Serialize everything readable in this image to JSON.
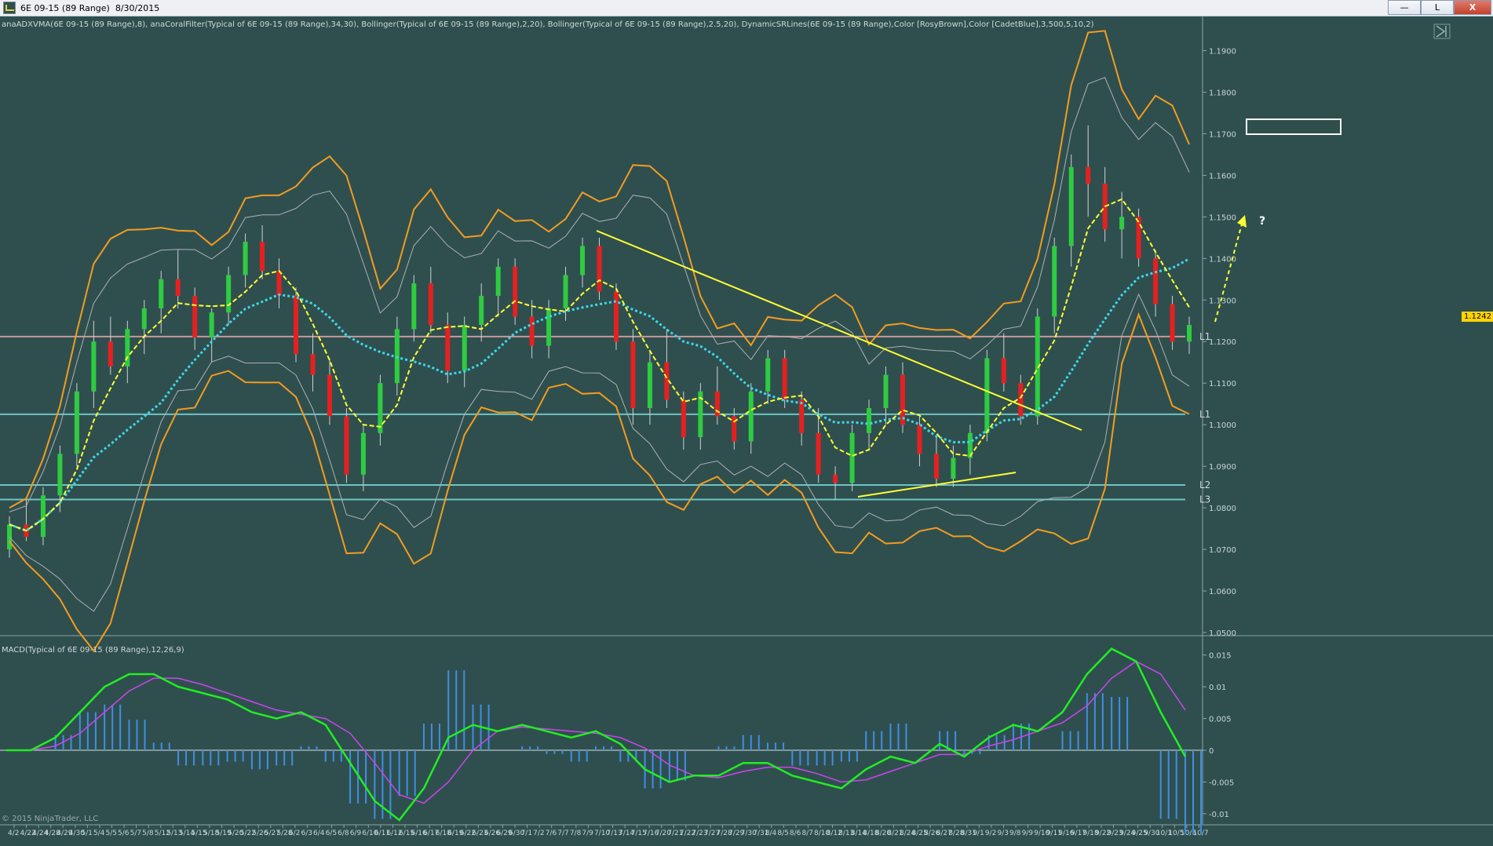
{
  "window": {
    "title": "6E 09-15 (89 Range)  8/30/2015",
    "minimize_label": "—",
    "restore_label": "L",
    "close_label": "X"
  },
  "indicators_label": "anaADXVMA(6E 09-15 (89 Range),8), anaCoralFilter(Typical of 6E 09-15 (89 Range),34,30), Bollinger(Typical of 6E 09-15 (89 Range),2,20), Bollinger(Typical of 6E 09-15 (89 Range),2.5,20), DynamicSRLines(6E 09-15 (89 Range),Color [RosyBrown],Color [CadetBlue],3,500,5,10,2)",
  "macd_label": "MACD(Typical of 6E 09-15 (89 Range),12,26,9)",
  "copyright": "© 2015 NinjaTrader, LLC",
  "current_price": "1.1242",
  "colors": {
    "background": "#2f4f4f",
    "bollinger_outer": "#f39c1f",
    "bollinger_inner": "#b0b0b0",
    "coral_filter": "#3fd7e8",
    "adxvma": "#ffff33",
    "sr_support": "#6fc3c3",
    "sr_resistance": "#c79a9a",
    "candle_up": "#2ecc40",
    "candle_down": "#e62020",
    "macd_line": "#22ee22",
    "signal_line": "#cc44ee",
    "histogram": "#3d8fe6",
    "trendline": "#ffff33"
  },
  "sr_levels": [
    {
      "label": "L1",
      "price": 1.1212
    },
    {
      "label": "L1",
      "price": 1.1025
    },
    {
      "label": "L2",
      "price": 1.0855
    },
    {
      "label": "L3",
      "price": 1.082
    }
  ],
  "annotation_question": "?",
  "price_axis": [
    "1.1900",
    "1.1800",
    "1.1700",
    "1.1600",
    "1.1500",
    "1.1400",
    "1.1300",
    "1.1200",
    "1.1100",
    "1.1000",
    "1.0900",
    "1.0800",
    "1.0700",
    "1.0600",
    "1.0500"
  ],
  "macd_axis": [
    "0.015",
    "0.01",
    "0.005",
    "0",
    "-0.005",
    "-0.01"
  ],
  "date_axis": [
    "4/2",
    "4/22",
    "4/24",
    "4/28",
    "4/29",
    "4/30",
    "5/1",
    "5/4",
    "5/5",
    "5/6",
    "5/7",
    "5/8",
    "5/12",
    "5/13",
    "5/14",
    "5/15",
    "5/18",
    "5/19",
    "5/20",
    "5/22",
    "5/26",
    "5/27",
    "5/28",
    "6/2",
    "6/3",
    "6/4",
    "6/5",
    "6/8",
    "6/9",
    "6/10",
    "6/11",
    "6/12",
    "6/15",
    "6/16",
    "6/17",
    "6/18",
    "6/19",
    "6/22",
    "6/23",
    "6/26",
    "6/29",
    "6/30",
    "7/1",
    "7/2",
    "7/6",
    "7/7",
    "7/8",
    "7/9",
    "7/10",
    "7/13",
    "7/14",
    "7/15",
    "7/16",
    "7/20",
    "7/21",
    "7/22",
    "7/23",
    "7/27",
    "7/28",
    "7/29",
    "7/30",
    "7/31",
    "8/4",
    "8/5",
    "8/6",
    "8/7",
    "8/10",
    "8/12",
    "8/13",
    "8/14",
    "8/18",
    "8/20",
    "8/21",
    "8/24",
    "8/25",
    "8/26",
    "8/27",
    "8/28",
    "8/31",
    "9/1",
    "9/2",
    "9/3",
    "9/8",
    "9/9",
    "9/10",
    "9/11",
    "9/16",
    "9/17",
    "9/18",
    "9/22",
    "9/23",
    "9/24",
    "9/25",
    "9/30",
    "10/1",
    "10/5",
    "10/6",
    "10/7"
  ],
  "chart_data": {
    "type": "candlestick",
    "instrument": "6E 09-15 (89 Range)",
    "ylim": [
      1.05,
      1.195
    ],
    "candles_ohlc": [
      [
        1.07,
        1.078,
        1.068,
        1.076
      ],
      [
        1.076,
        1.082,
        1.072,
        1.073
      ],
      [
        1.073,
        1.085,
        1.071,
        1.083
      ],
      [
        1.083,
        1.095,
        1.079,
        1.093
      ],
      [
        1.093,
        1.11,
        1.09,
        1.108
      ],
      [
        1.108,
        1.125,
        1.104,
        1.12
      ],
      [
        1.12,
        1.126,
        1.112,
        1.114
      ],
      [
        1.114,
        1.125,
        1.11,
        1.123
      ],
      [
        1.123,
        1.13,
        1.117,
        1.128
      ],
      [
        1.128,
        1.137,
        1.122,
        1.135
      ],
      [
        1.135,
        1.142,
        1.128,
        1.131
      ],
      [
        1.131,
        1.133,
        1.118,
        1.121
      ],
      [
        1.121,
        1.128,
        1.115,
        1.127
      ],
      [
        1.127,
        1.138,
        1.124,
        1.136
      ],
      [
        1.136,
        1.146,
        1.133,
        1.144
      ],
      [
        1.144,
        1.148,
        1.135,
        1.137
      ],
      [
        1.137,
        1.14,
        1.128,
        1.131
      ],
      [
        1.131,
        1.133,
        1.115,
        1.117
      ],
      [
        1.117,
        1.122,
        1.108,
        1.112
      ],
      [
        1.112,
        1.116,
        1.1,
        1.102
      ],
      [
        1.102,
        1.104,
        1.086,
        1.088
      ],
      [
        1.088,
        1.1,
        1.084,
        1.098
      ],
      [
        1.098,
        1.112,
        1.095,
        1.11
      ],
      [
        1.11,
        1.126,
        1.107,
        1.123
      ],
      [
        1.123,
        1.136,
        1.12,
        1.134
      ],
      [
        1.134,
        1.138,
        1.122,
        1.124
      ],
      [
        1.124,
        1.127,
        1.11,
        1.113
      ],
      [
        1.113,
        1.126,
        1.109,
        1.124
      ],
      [
        1.124,
        1.134,
        1.12,
        1.131
      ],
      [
        1.131,
        1.14,
        1.126,
        1.138
      ],
      [
        1.138,
        1.14,
        1.124,
        1.126
      ],
      [
        1.126,
        1.13,
        1.116,
        1.119
      ],
      [
        1.119,
        1.13,
        1.116,
        1.128
      ],
      [
        1.128,
        1.138,
        1.125,
        1.136
      ],
      [
        1.136,
        1.145,
        1.133,
        1.143
      ],
      [
        1.143,
        1.145,
        1.13,
        1.132
      ],
      [
        1.132,
        1.134,
        1.118,
        1.12
      ],
      [
        1.12,
        1.123,
        1.1,
        1.104
      ],
      [
        1.104,
        1.118,
        1.1,
        1.115
      ],
      [
        1.115,
        1.123,
        1.104,
        1.106
      ],
      [
        1.106,
        1.108,
        1.094,
        1.097
      ],
      [
        1.097,
        1.11,
        1.094,
        1.108
      ],
      [
        1.108,
        1.114,
        1.1,
        1.102
      ],
      [
        1.102,
        1.104,
        1.094,
        1.096
      ],
      [
        1.096,
        1.11,
        1.093,
        1.108
      ],
      [
        1.108,
        1.118,
        1.105,
        1.116
      ],
      [
        1.116,
        1.118,
        1.104,
        1.106
      ],
      [
        1.106,
        1.108,
        1.095,
        1.098
      ],
      [
        1.098,
        1.104,
        1.086,
        1.088
      ],
      [
        1.088,
        1.09,
        1.082,
        1.086
      ],
      [
        1.086,
        1.1,
        1.084,
        1.098
      ],
      [
        1.098,
        1.106,
        1.094,
        1.104
      ],
      [
        1.104,
        1.114,
        1.1,
        1.112
      ],
      [
        1.112,
        1.115,
        1.098,
        1.1
      ],
      [
        1.1,
        1.102,
        1.09,
        1.093
      ],
      [
        1.093,
        1.097,
        1.085,
        1.087
      ],
      [
        1.087,
        1.095,
        1.085,
        1.092
      ],
      [
        1.092,
        1.1,
        1.088,
        1.098
      ],
      [
        1.098,
        1.118,
        1.096,
        1.116
      ],
      [
        1.116,
        1.122,
        1.108,
        1.11
      ],
      [
        1.11,
        1.112,
        1.1,
        1.102
      ],
      [
        1.102,
        1.128,
        1.1,
        1.126
      ],
      [
        1.126,
        1.145,
        1.122,
        1.143
      ],
      [
        1.143,
        1.165,
        1.138,
        1.162
      ],
      [
        1.162,
        1.172,
        1.15,
        1.158
      ],
      [
        1.158,
        1.162,
        1.144,
        1.147
      ],
      [
        1.147,
        1.156,
        1.14,
        1.15
      ],
      [
        1.15,
        1.152,
        1.138,
        1.14
      ],
      [
        1.14,
        1.142,
        1.126,
        1.129
      ],
      [
        1.129,
        1.131,
        1.118,
        1.12
      ],
      [
        1.12,
        1.126,
        1.117,
        1.124
      ]
    ]
  },
  "macd_data": {
    "macd": [
      0,
      0,
      0.002,
      0.006,
      0.01,
      0.012,
      0.012,
      0.01,
      0.009,
      0.008,
      0.006,
      0.005,
      0.006,
      0.004,
      -0.002,
      -0.008,
      -0.011,
      -0.006,
      0.002,
      0.004,
      0.003,
      0.004,
      0.003,
      0.002,
      0.003,
      0.001,
      -0.003,
      -0.005,
      -0.004,
      -0.004,
      -0.002,
      -0.002,
      -0.004,
      -0.005,
      -0.006,
      -0.003,
      -0.001,
      -0.002,
      0.001,
      -0.001,
      0.002,
      0.004,
      0.003,
      0.006,
      0.012,
      0.016,
      0.014,
      0.006,
      -0.001
    ]
  }
}
